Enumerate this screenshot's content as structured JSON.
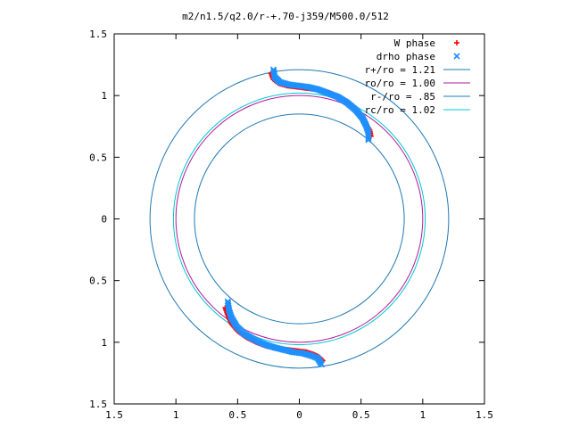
{
  "chart_data": {
    "type": "scatter",
    "title": "m2/n1.5/q2.0/r-+.70-j359/M500.0/512",
    "xlabel": "",
    "ylabel": "",
    "xlim": [
      -1.5,
      1.5
    ],
    "ylim": [
      -1.5,
      1.5
    ],
    "x_ticks": [
      "1.5",
      "1",
      "0.5",
      "0",
      "0.5",
      "1",
      "1.5"
    ],
    "x_tick_values": [
      -1.5,
      -1,
      -0.5,
      0,
      0.5,
      1,
      1.5
    ],
    "y_ticks": [
      "1.5",
      "1",
      "0.5",
      "0",
      "0.5",
      "1",
      "1.5"
    ],
    "y_tick_values": [
      1.5,
      1,
      0.5,
      0,
      -0.5,
      -1,
      -1.5
    ],
    "grid": false,
    "legend_position": "top-right",
    "legend": [
      {
        "label": "W phase",
        "kind": "plus",
        "color": "#ff0000"
      },
      {
        "label": "drho phase",
        "kind": "cross",
        "color": "#1e90ff"
      },
      {
        "label": "r+/ro = 1.21",
        "kind": "line",
        "color": "#1f78b4"
      },
      {
        "label": "ro/ro = 1.00",
        "kind": "line",
        "color": "#b0179b"
      },
      {
        "label": "r-/ro = .85",
        "kind": "line",
        "color": "#1f78b4"
      },
      {
        "label": "rc/ro = 1.02",
        "kind": "line",
        "color": "#00c8d0"
      }
    ],
    "circles": [
      {
        "name": "r+/ro = 1.21",
        "r": 1.21,
        "color": "#1f78b4"
      },
      {
        "name": "ro/ro = 1.00",
        "r": 1.0,
        "color": "#b0179b"
      },
      {
        "name": "r-/ro = .85",
        "r": 0.85,
        "color": "#1f78b4"
      },
      {
        "name": "rc/ro = 1.02",
        "r": 1.02,
        "color": "#00c8d0"
      }
    ],
    "series": [
      {
        "name": "W phase",
        "color": "#ff0000",
        "marker": "plus",
        "points": [
          [
            -0.23,
            1.18
          ],
          [
            -0.21,
            1.13
          ],
          [
            -0.17,
            1.1
          ],
          [
            -0.1,
            1.08
          ],
          [
            -0.02,
            1.07
          ],
          [
            0.06,
            1.06
          ],
          [
            0.14,
            1.05
          ],
          [
            0.22,
            1.03
          ],
          [
            0.3,
            1.0
          ],
          [
            0.38,
            0.95
          ],
          [
            0.45,
            0.89
          ],
          [
            0.5,
            0.83
          ],
          [
            0.54,
            0.77
          ],
          [
            0.57,
            0.72
          ],
          [
            0.58,
            0.67
          ],
          [
            -0.6,
            -0.72
          ],
          [
            -0.58,
            -0.78
          ],
          [
            -0.55,
            -0.85
          ],
          [
            -0.5,
            -0.91
          ],
          [
            -0.43,
            -0.96
          ],
          [
            -0.35,
            -1.0
          ],
          [
            -0.27,
            -1.03
          ],
          [
            -0.18,
            -1.05
          ],
          [
            -0.1,
            -1.06
          ],
          [
            -0.02,
            -1.07
          ],
          [
            0.06,
            -1.08
          ],
          [
            0.12,
            -1.1
          ],
          [
            0.16,
            -1.12
          ],
          [
            0.19,
            -1.15
          ]
        ]
      },
      {
        "name": "drho phase",
        "color": "#1e90ff",
        "marker": "cross",
        "points": [
          [
            -0.21,
            1.21
          ],
          [
            -0.2,
            1.15
          ],
          [
            -0.16,
            1.11
          ],
          [
            -0.09,
            1.09
          ],
          [
            -0.01,
            1.08
          ],
          [
            0.07,
            1.07
          ],
          [
            0.15,
            1.05
          ],
          [
            0.23,
            1.02
          ],
          [
            0.31,
            0.99
          ],
          [
            0.39,
            0.94
          ],
          [
            0.46,
            0.88
          ],
          [
            0.51,
            0.82
          ],
          [
            0.54,
            0.76
          ],
          [
            0.56,
            0.7
          ],
          [
            0.56,
            0.64
          ],
          [
            -0.58,
            -0.67
          ],
          [
            -0.57,
            -0.74
          ],
          [
            -0.55,
            -0.8
          ],
          [
            -0.51,
            -0.87
          ],
          [
            -0.45,
            -0.93
          ],
          [
            -0.38,
            -0.97
          ],
          [
            -0.3,
            -1.01
          ],
          [
            -0.21,
            -1.04
          ],
          [
            -0.13,
            -1.06
          ],
          [
            -0.05,
            -1.08
          ],
          [
            0.03,
            -1.09
          ],
          [
            0.1,
            -1.11
          ],
          [
            0.15,
            -1.13
          ],
          [
            0.18,
            -1.18
          ]
        ]
      }
    ]
  }
}
